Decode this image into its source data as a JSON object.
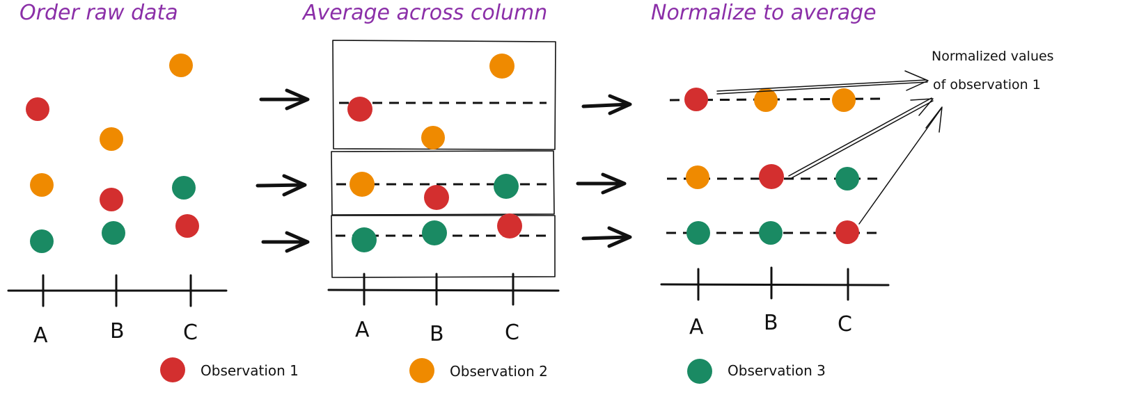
{
  "titles": {
    "step1": "Order raw data",
    "step2": "Average across column",
    "step3": "Normalize to average"
  },
  "axis": {
    "categories": [
      "A",
      "B",
      "C"
    ]
  },
  "annotation": {
    "line1": "Normalized values",
    "line2": "of observation 1"
  },
  "legend": [
    {
      "label": "Observation 1",
      "color": "#d32f2f"
    },
    {
      "label": "Observation 2",
      "color": "#ef8a00"
    },
    {
      "label": "Observation 3",
      "color": "#1a8a63"
    }
  ],
  "colors": {
    "obs1": "#d32f2f",
    "obs2": "#ef8a00",
    "obs3": "#1a8a63",
    "title": "#8b2fa8"
  },
  "icons": {
    "arrow": "right-arrow-icon",
    "dot": "observation-dot-icon"
  }
}
